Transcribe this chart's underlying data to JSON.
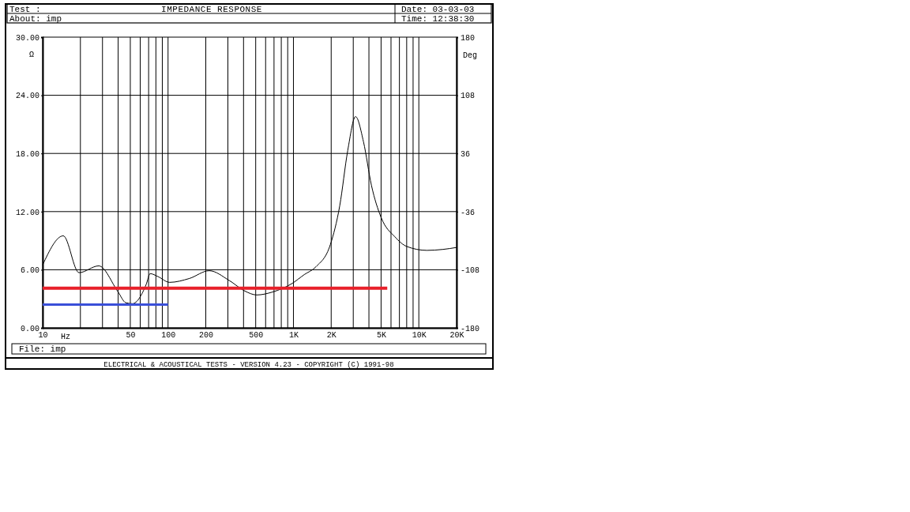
{
  "chart_data": {
    "type": "line",
    "title": "IMPEDANCE RESPONSE",
    "xlabel": "Hz",
    "ylabel": "Ω",
    "y2label": "Deg",
    "annotations": [
      "Test :",
      "Date: 03-03-03",
      "About:   imp",
      "Time: 12:38:30",
      "File: imp",
      "ELECTRICAL & ACOUSTICAL TESTS  -  VERSION 4.23  -  COPYRIGHT (C) 1991-98"
    ],
    "log": "x",
    "grid": true,
    "marker": "none",
    "line_style": "solid",
    "xlim": [
      10,
      20000
    ],
    "xticks": [
      10,
      {
        "value": 20,
        "label": null
      },
      {
        "value": 30,
        "label": null
      },
      {
        "value": 40,
        "label": null
      },
      50,
      {
        "value": 60,
        "label": null
      },
      {
        "value": 70,
        "label": null
      },
      {
        "value": 80,
        "label": null
      },
      {
        "value": 90,
        "label": null
      },
      100,
      200,
      {
        "value": 300,
        "label": null
      },
      {
        "value": 400,
        "label": null
      },
      500,
      {
        "value": 600,
        "label": null
      },
      {
        "value": 700,
        "label": null
      },
      {
        "value": 800,
        "label": null
      },
      {
        "value": 900,
        "label": null
      },
      {
        "value": 1000,
        "label": "1K"
      },
      {
        "value": 2000,
        "label": "2K"
      },
      {
        "value": 3000,
        "label": null
      },
      {
        "value": 4000,
        "label": null
      },
      {
        "value": 5000,
        "label": "5K"
      },
      {
        "value": 6000,
        "label": null
      },
      {
        "value": 7000,
        "label": null
      },
      {
        "value": 8000,
        "label": null
      },
      {
        "value": 9000,
        "label": null
      },
      {
        "value": 10000,
        "label": "10K"
      },
      {
        "value": 20000,
        "label": "20K"
      }
    ],
    "ylim": [
      0,
      30
    ],
    "yticks": [
      {
        "value": 0,
        "label": "0.00"
      },
      {
        "value": 6,
        "label": "6.00"
      },
      {
        "value": 12,
        "label": "12.00"
      },
      {
        "value": 18,
        "label": "18.00"
      },
      {
        "value": 24,
        "label": "24.00"
      },
      {
        "value": 30,
        "label": "30.00"
      }
    ],
    "y2lim": [
      -180,
      180
    ],
    "y2ticks": [
      -180,
      -108,
      -36,
      36,
      108,
      180
    ],
    "series": [
      {
        "color": "#000000",
        "x": [
          10,
          14.6,
          19.5,
          28,
          40,
          46,
          52,
          67,
          72,
          83,
          103,
          148,
          213,
          307,
          410,
          510,
          680,
          980,
          1220,
          1510,
          1970,
          2340,
          2710,
          3130,
          3620,
          4190,
          5000,
          6440,
          8020,
          11600,
          15600,
          20000
        ],
        "values": [
          6.5,
          9.5,
          5.7,
          6.4,
          3.7,
          2.6,
          2.5,
          4.5,
          5.6,
          5.3,
          4.7,
          5.1,
          5.9,
          4.9,
          3.8,
          3.4,
          3.7,
          4.6,
          5.5,
          6.3,
          8.6,
          12.6,
          18.3,
          21.8,
          19.2,
          14.7,
          11.4,
          9.4,
          8.4,
          8.0,
          8.1,
          8.3
        ]
      },
      {
        "color": "#e8202a",
        "x": [
          10,
          5600
        ],
        "values": [
          4.1,
          4.1
        ]
      },
      {
        "color": "#3a4fd8",
        "x": [
          10,
          100
        ],
        "values": [
          2.4,
          2.4
        ]
      }
    ]
  }
}
